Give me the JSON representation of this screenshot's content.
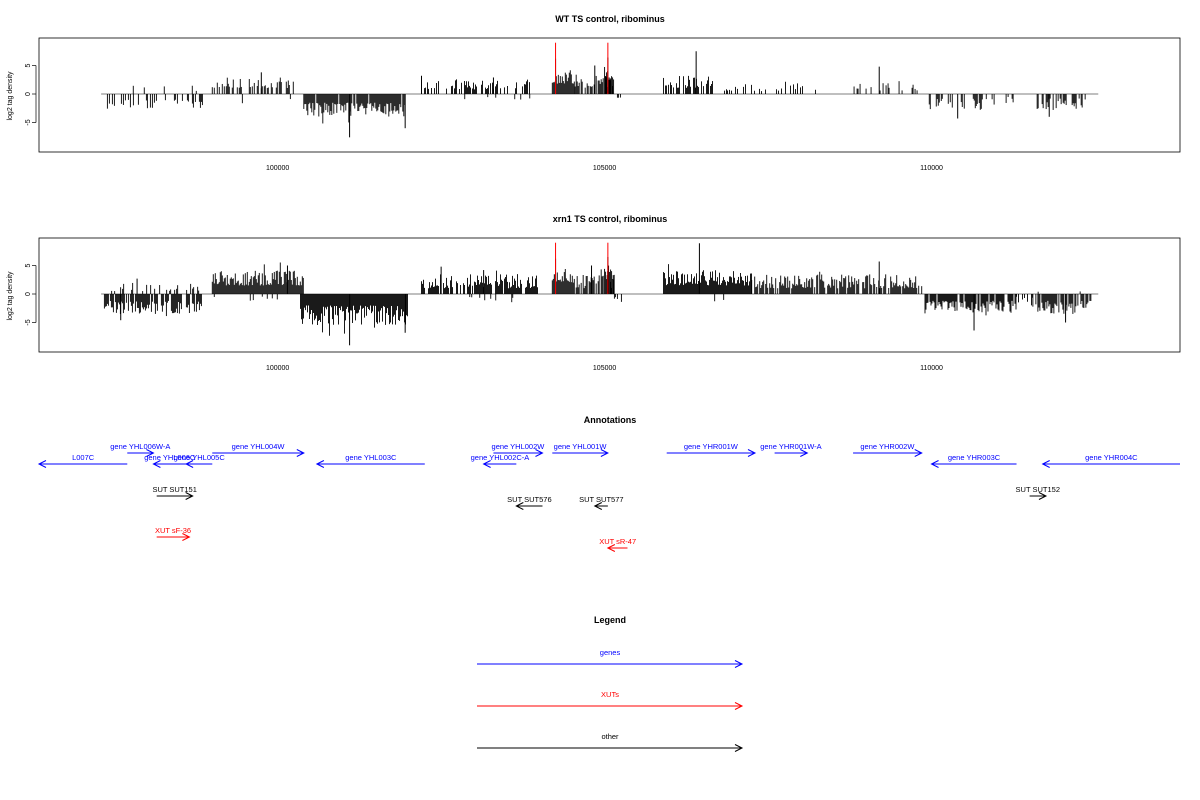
{
  "chart_data": [
    {
      "type": "bar",
      "title": "WT TS control, ribominus",
      "ylabel": "log2 tag density",
      "xlim": [
        96350,
        113800
      ],
      "ylim": [
        -10,
        10
      ],
      "x_ticks": [
        100000,
        105000,
        110000
      ],
      "x_tick_labels": [
        "100000",
        "105000",
        "110000"
      ],
      "y_ticks": [
        5,
        0,
        -5
      ],
      "y_tick_labels": [
        "5",
        "0",
        "-5"
      ],
      "baseline": {
        "x": [
          97300,
          112550
        ],
        "y": 0
      },
      "red_lines": [
        {
          "x": 104250,
          "y": 9
        },
        {
          "x": 105050,
          "y": 9
        }
      ],
      "segments": [
        {
          "x0": 97350,
          "x1": 98850,
          "mode": "neg",
          "lo": 1.0,
          "hi": 2.6,
          "density": 0.3,
          "spikes": []
        },
        {
          "x0": 97700,
          "x1": 98800,
          "mode": "pos",
          "lo": 0.5,
          "hi": 1.5,
          "density": 0.06,
          "spikes": []
        },
        {
          "x0": 99000,
          "x1": 100250,
          "mode": "pos",
          "lo": 1.0,
          "hi": 3.0,
          "density": 0.55,
          "spikes": [
            {
              "x": 99750,
              "y": 3.8
            }
          ]
        },
        {
          "x0": 99200,
          "x1": 100200,
          "mode": "neg",
          "lo": 0.5,
          "hi": 2.0,
          "density": 0.07,
          "spikes": []
        },
        {
          "x0": 100400,
          "x1": 101950,
          "mode": "neg",
          "lo": 1.5,
          "hi": 4.0,
          "density": 0.95,
          "spikes": [
            {
              "x": 101100,
              "y": -7.6
            },
            {
              "x": 101950,
              "y": -6.0
            }
          ]
        },
        {
          "x0": 102200,
          "x1": 103900,
          "mode": "pos",
          "lo": 0.8,
          "hi": 2.6,
          "density": 0.35,
          "spikes": [
            {
              "x": 102200,
              "y": 3.2
            },
            {
              "x": 103300,
              "y": 2.9
            }
          ]
        },
        {
          "x0": 102800,
          "x1": 103900,
          "mode": "neg",
          "lo": 0.5,
          "hi": 1.5,
          "density": 0.07,
          "spikes": []
        },
        {
          "x0": 104200,
          "x1": 104550,
          "mode": "pos",
          "lo": 1.8,
          "hi": 4.5,
          "density": 1.0,
          "spikes": [
            {
              "x": 104250,
              "y": 6.2
            }
          ]
        },
        {
          "x0": 104550,
          "x1": 105150,
          "mode": "pos",
          "lo": 1.0,
          "hi": 3.2,
          "density": 0.6,
          "spikes": [
            {
              "x": 104850,
              "y": 5.0
            }
          ]
        },
        {
          "x0": 105000,
          "x1": 105150,
          "mode": "pos",
          "lo": 2.5,
          "hi": 5.0,
          "density": 1.0,
          "spikes": [
            {
              "x": 105050,
              "y": 6.4
            }
          ]
        },
        {
          "x0": 105150,
          "x1": 105250,
          "mode": "neg",
          "lo": 0.4,
          "hi": 1.2,
          "density": 0.4,
          "spikes": []
        },
        {
          "x0": 105900,
          "x1": 106650,
          "mode": "pos",
          "lo": 1.0,
          "hi": 3.2,
          "density": 0.55,
          "spikes": [
            {
              "x": 106400,
              "y": 7.5
            }
          ]
        },
        {
          "x0": 106650,
          "x1": 108300,
          "mode": "pos",
          "lo": 0.5,
          "hi": 2.2,
          "density": 0.25,
          "spikes": []
        },
        {
          "x0": 108800,
          "x1": 109800,
          "mode": "pos",
          "lo": 0.6,
          "hi": 2.8,
          "density": 0.3,
          "spikes": [
            {
              "x": 109200,
              "y": 4.8
            }
          ]
        },
        {
          "x0": 109950,
          "x1": 110850,
          "mode": "neg",
          "lo": 0.8,
          "hi": 2.8,
          "density": 0.45,
          "spikes": [
            {
              "x": 110400,
              "y": -4.3
            }
          ]
        },
        {
          "x0": 110850,
          "x1": 111400,
          "mode": "neg",
          "lo": 0.5,
          "hi": 2.0,
          "density": 0.15,
          "spikes": []
        },
        {
          "x0": 111600,
          "x1": 112400,
          "mode": "neg",
          "lo": 0.8,
          "hi": 2.8,
          "density": 0.45,
          "spikes": [
            {
              "x": 111800,
              "y": -4.0
            }
          ]
        }
      ]
    },
    {
      "type": "bar",
      "title": "xrn1 TS control, ribominus",
      "ylabel": "log2 tag density",
      "xlim": [
        96350,
        113800
      ],
      "ylim": [
        -10,
        10
      ],
      "x_ticks": [
        100000,
        105000,
        110000
      ],
      "x_tick_labels": [
        "100000",
        "105000",
        "110000"
      ],
      "y_ticks": [
        5,
        0,
        -5
      ],
      "y_tick_labels": [
        "5",
        "0",
        "-5"
      ],
      "baseline": {
        "x": [
          97300,
          112550
        ],
        "y": 0
      },
      "red_lines": [
        {
          "x": 104250,
          "y": 9
        },
        {
          "x": 105050,
          "y": 9
        }
      ],
      "segments": [
        {
          "x0": 97350,
          "x1": 98850,
          "mode": "neg",
          "lo": 1.2,
          "hi": 3.5,
          "density": 0.85,
          "spikes": [
            {
              "x": 97600,
              "y": -4.6
            }
          ]
        },
        {
          "x0": 97400,
          "x1": 98800,
          "mode": "pos",
          "lo": 0.5,
          "hi": 2.0,
          "density": 0.25,
          "spikes": [
            {
              "x": 97850,
              "y": 2.7
            }
          ]
        },
        {
          "x0": 99000,
          "x1": 100400,
          "mode": "pos",
          "lo": 1.5,
          "hi": 4.2,
          "density": 1.0,
          "spikes": [
            {
              "x": 100150,
              "y": 5.0
            }
          ]
        },
        {
          "x0": 99000,
          "x1": 100300,
          "mode": "neg",
          "lo": 0.4,
          "hi": 1.5,
          "density": 0.1,
          "spikes": []
        },
        {
          "x0": 100350,
          "x1": 102000,
          "mode": "neg",
          "lo": 2.0,
          "hi": 5.5,
          "density": 1.0,
          "spikes": [
            {
              "x": 101100,
              "y": -9.0
            },
            {
              "x": 101950,
              "y": -6.8
            }
          ]
        },
        {
          "x0": 102200,
          "x1": 104000,
          "mode": "pos",
          "lo": 1.0,
          "hi": 3.5,
          "density": 0.8,
          "spikes": [
            {
              "x": 102500,
              "y": 4.8
            },
            {
              "x": 103150,
              "y": 4.2
            }
          ]
        },
        {
          "x0": 102800,
          "x1": 104000,
          "mode": "neg",
          "lo": 0.5,
          "hi": 1.5,
          "density": 0.08,
          "spikes": []
        },
        {
          "x0": 104200,
          "x1": 104550,
          "mode": "pos",
          "lo": 2.0,
          "hi": 4.5,
          "density": 1.0,
          "spikes": [
            {
              "x": 104250,
              "y": 6.2
            }
          ]
        },
        {
          "x0": 104550,
          "x1": 105150,
          "mode": "pos",
          "lo": 1.0,
          "hi": 3.5,
          "density": 0.7,
          "spikes": [
            {
              "x": 104800,
              "y": 5.0
            }
          ]
        },
        {
          "x0": 105000,
          "x1": 105150,
          "mode": "pos",
          "lo": 2.5,
          "hi": 5.0,
          "density": 1.0,
          "spikes": [
            {
              "x": 105050,
              "y": 6.5
            }
          ]
        },
        {
          "x0": 105150,
          "x1": 105300,
          "mode": "neg",
          "lo": 0.4,
          "hi": 1.5,
          "density": 0.5,
          "spikes": []
        },
        {
          "x0": 105900,
          "x1": 107250,
          "mode": "pos",
          "lo": 1.5,
          "hi": 4.2,
          "density": 1.0,
          "spikes": [
            {
              "x": 106450,
              "y": 8.9
            }
          ]
        },
        {
          "x0": 106500,
          "x1": 107000,
          "mode": "neg",
          "lo": 0.5,
          "hi": 1.5,
          "density": 0.08,
          "spikes": []
        },
        {
          "x0": 107250,
          "x1": 109850,
          "mode": "pos",
          "lo": 1.0,
          "hi": 3.5,
          "density": 0.8,
          "spikes": [
            {
              "x": 109200,
              "y": 5.7
            }
          ]
        },
        {
          "x0": 109900,
          "x1": 111300,
          "mode": "neg",
          "lo": 1.2,
          "hi": 3.6,
          "density": 0.85,
          "spikes": [
            {
              "x": 110650,
              "y": -6.4
            }
          ]
        },
        {
          "x0": 111300,
          "x1": 111550,
          "mode": "neg",
          "lo": 0.4,
          "hi": 1.5,
          "density": 0.2,
          "spikes": []
        },
        {
          "x0": 111550,
          "x1": 112450,
          "mode": "neg",
          "lo": 1.2,
          "hi": 3.6,
          "density": 0.85,
          "spikes": [
            {
              "x": 112050,
              "y": -5.0
            }
          ]
        },
        {
          "x0": 111600,
          "x1": 112400,
          "mode": "pos",
          "lo": 0.4,
          "hi": 1.5,
          "density": 0.08,
          "spikes": []
        }
      ]
    }
  ],
  "annotations": {
    "title": "Annotations",
    "colors": {
      "genes": "#0000ff",
      "xuts": "#ff0000",
      "other": "#000000"
    },
    "items": [
      {
        "kind": "gene",
        "label": "L007C",
        "start": 96350,
        "end": 97700,
        "dir": "left",
        "row": 2
      },
      {
        "kind": "gene",
        "label": "gene YHL006W-A",
        "start": 97700,
        "end": 98100,
        "dir": "right",
        "row": 1
      },
      {
        "kind": "gene",
        "label": "gene YHL006C",
        "start": 98100,
        "end": 98600,
        "dir": "left",
        "row": 2
      },
      {
        "kind": "gene",
        "label": "gene YHL005C",
        "start": 98600,
        "end": 99000,
        "dir": "left",
        "row": 2
      },
      {
        "kind": "gene",
        "label": "gene YHL004W",
        "start": 99000,
        "end": 100400,
        "dir": "right",
        "row": 1
      },
      {
        "kind": "gene",
        "label": "gene YHL003C",
        "start": 100600,
        "end": 102250,
        "dir": "left",
        "row": 2
      },
      {
        "kind": "gene",
        "label": "gene YHL002C-A",
        "start": 103150,
        "end": 103650,
        "dir": "left",
        "row": 2
      },
      {
        "kind": "gene",
        "label": "gene YHL002W",
        "start": 103300,
        "end": 104050,
        "dir": "right",
        "row": 1
      },
      {
        "kind": "gene",
        "label": "gene YHL001W",
        "start": 104200,
        "end": 105050,
        "dir": "right",
        "row": 1
      },
      {
        "kind": "gene",
        "label": "gene YHR001W",
        "start": 105950,
        "end": 107300,
        "dir": "right",
        "row": 1
      },
      {
        "kind": "gene",
        "label": "gene YHR001W-A",
        "start": 107600,
        "end": 108100,
        "dir": "right",
        "row": 1
      },
      {
        "kind": "gene",
        "label": "gene YHR002W",
        "start": 108800,
        "end": 109850,
        "dir": "right",
        "row": 1
      },
      {
        "kind": "gene",
        "label": "gene YHR003C",
        "start": 110000,
        "end": 111300,
        "dir": "left",
        "row": 2
      },
      {
        "kind": "gene",
        "label": "gene YHR004C",
        "start": 111700,
        "end": 113800,
        "dir": "left",
        "row": 2
      },
      {
        "kind": "other",
        "label": "SUT SUT151",
        "start": 98150,
        "end": 98700,
        "dir": "right",
        "row": 3
      },
      {
        "kind": "other",
        "label": "SUT SUT576",
        "start": 103650,
        "end": 104050,
        "dir": "left",
        "row": 4
      },
      {
        "kind": "other",
        "label": "SUT SUT577",
        "start": 104850,
        "end": 105050,
        "dir": "left",
        "row": 4
      },
      {
        "kind": "other",
        "label": "SUT SUT152",
        "start": 111500,
        "end": 111750,
        "dir": "right",
        "row": 3
      },
      {
        "kind": "xut",
        "label": "XUT sF-36",
        "start": 98150,
        "end": 98650,
        "dir": "right",
        "row": 5
      },
      {
        "kind": "xut",
        "label": "XUT sR-47",
        "start": 105050,
        "end": 105350,
        "dir": "left",
        "row": 6
      }
    ]
  },
  "legend": {
    "title": "Legend",
    "entries": [
      {
        "label": "genes",
        "color": "#0000ff"
      },
      {
        "label": "XUTs",
        "color": "#ff0000"
      },
      {
        "label": "other",
        "color": "#000000"
      }
    ]
  }
}
